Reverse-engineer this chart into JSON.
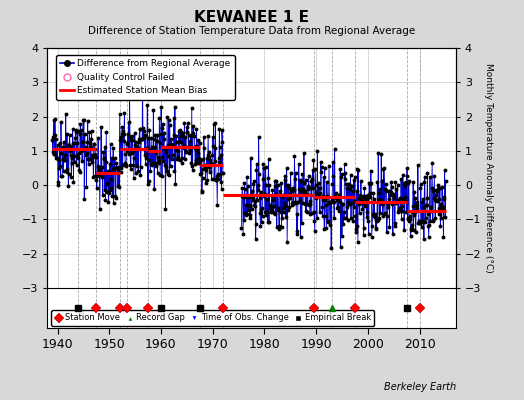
{
  "title": "KEWANEE 1 E",
  "subtitle": "Difference of Station Temperature Data from Regional Average",
  "ylabel_right": "Monthly Temperature Anomaly Difference (°C)",
  "xlim": [
    1938,
    2017
  ],
  "ylim": [
    -3,
    4
  ],
  "yticks": [
    -3,
    -2,
    -1,
    0,
    1,
    2,
    3,
    4
  ],
  "xticks": [
    1940,
    1950,
    1960,
    1970,
    1980,
    1990,
    2000,
    2010
  ],
  "background_color": "#d8d8d8",
  "plot_bg_color": "#ffffff",
  "segments": [
    {
      "start": 1939.0,
      "end": 1947.5,
      "bias": 1.05
    },
    {
      "start": 1947.5,
      "end": 1952.0,
      "bias": 0.35
    },
    {
      "start": 1952.0,
      "end": 1957.5,
      "bias": 1.05
    },
    {
      "start": 1957.5,
      "end": 1960.0,
      "bias": 1.0
    },
    {
      "start": 1960.0,
      "end": 1967.5,
      "bias": 1.1
    },
    {
      "start": 1967.5,
      "end": 1972.0,
      "bias": 0.6
    },
    {
      "start": 1972.0,
      "end": 1989.5,
      "bias": -0.3
    },
    {
      "start": 1989.5,
      "end": 1997.5,
      "bias": -0.35
    },
    {
      "start": 1997.5,
      "end": 2007.5,
      "bias": -0.5
    },
    {
      "start": 2007.5,
      "end": 2015.0,
      "bias": -0.75
    }
  ],
  "station_moves": [
    1947.5,
    1952.0,
    1953.5,
    1957.5,
    1972.0,
    1989.5,
    1997.5,
    2010.0
  ],
  "empirical_breaks": [
    1944.0,
    1960.0,
    1967.5,
    2007.5
  ],
  "record_gaps": [
    1993.0
  ],
  "time_of_obs_changes": [],
  "boundaries": [
    1944.0,
    1947.5,
    1952.0,
    1953.5,
    1957.5,
    1960.0,
    1967.5,
    1972.0,
    1989.5,
    1993.0,
    1997.5,
    2007.5,
    2010.0
  ],
  "gap_start": 1972.0,
  "gap_end": 1975.5,
  "data_start": 1939.0,
  "data_end": 2015.0,
  "noise_std": 0.55,
  "watermark": "Berkeley Earth",
  "seed": 42
}
